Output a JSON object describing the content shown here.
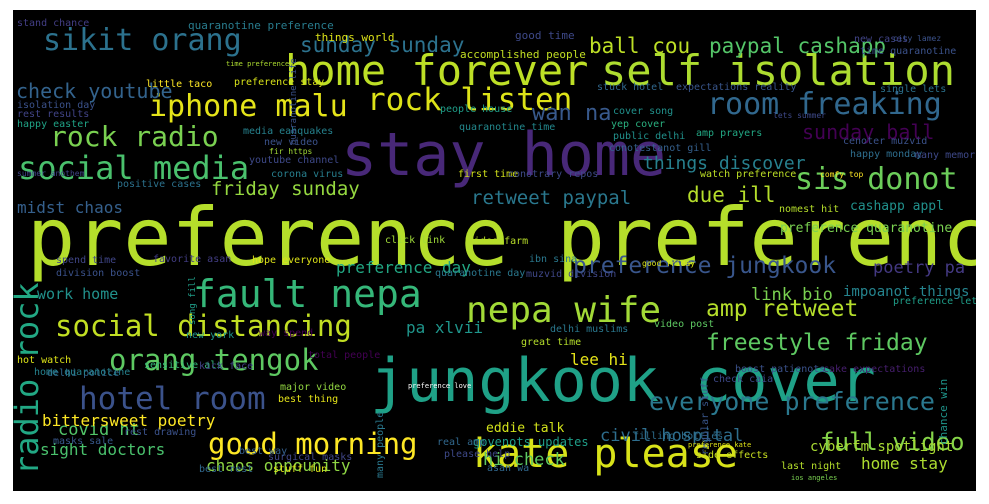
{
  "words": [
    {
      "text": "preference preference",
      "color": "#b5de2b"
    },
    {
      "text": "jungkook cover",
      "color": "#1fa187"
    },
    {
      "text": "stay home",
      "color": "#482878"
    },
    {
      "text": "home forever",
      "color": "#bddf26"
    },
    {
      "text": "self isolation",
      "color": "#addc30"
    },
    {
      "text": "kate please",
      "color": "#d8e219"
    },
    {
      "text": "fault nepa",
      "color": "#35b779"
    },
    {
      "text": "nepa wife",
      "color": "#a2da37"
    },
    {
      "text": "social media",
      "color": "#4ac16d"
    },
    {
      "text": "social distancing",
      "color": "#c2df23"
    },
    {
      "text": "rock listen",
      "color": "#dde318"
    },
    {
      "text": "room freaking",
      "color": "#31688e"
    },
    {
      "text": "iphone malu",
      "color": "#e5e419"
    },
    {
      "text": "good morning",
      "color": "#fde725"
    },
    {
      "text": "hotel room",
      "color": "#3b528b"
    },
    {
      "text": "orang tengok",
      "color": "#5ec962"
    },
    {
      "text": "sis donot",
      "color": "#6ccd5a"
    },
    {
      "text": "rock radio",
      "color": "#7ad151"
    },
    {
      "text": "sikit orang",
      "color": "#2c728e"
    },
    {
      "text": "radio rock",
      "color": "#22a884"
    },
    {
      "text": "everyone preference",
      "color": "#2a788e"
    },
    {
      "text": "full video",
      "color": "#86d549"
    },
    {
      "text": "freestyle friday",
      "color": "#5ec962"
    },
    {
      "text": "amp retweet",
      "color": "#b5de2b"
    },
    {
      "text": "preference jungkook",
      "color": "#39568c"
    },
    {
      "text": "sunday sunday",
      "color": "#2c728e"
    },
    {
      "text": "ball cou",
      "color": "#bddf26"
    },
    {
      "text": "paypal cashapp",
      "color": "#54c568"
    },
    {
      "text": "check youtube",
      "color": "#33638d"
    },
    {
      "text": "friday sunday",
      "color": "#95d840"
    },
    {
      "text": "retweet paypal",
      "color": "#2a788e"
    },
    {
      "text": "due ill",
      "color": "#b5de2b"
    },
    {
      "text": "wan na",
      "color": "#38598c"
    },
    {
      "text": "sunday ball",
      "color": "#440154"
    },
    {
      "text": "things discover",
      "color": "#27808e"
    },
    {
      "text": "midst chaos",
      "color": "#35608d"
    },
    {
      "text": "preference day",
      "color": "#22a884"
    },
    {
      "text": "link bio",
      "color": "#7ad151"
    },
    {
      "text": "poetry pa",
      "color": "#443983"
    },
    {
      "text": "covid ht",
      "color": "#52c569"
    },
    {
      "text": "bittersweet poetry",
      "color": "#fde725"
    },
    {
      "text": "sight doctors",
      "color": "#4ac16d"
    },
    {
      "text": "chaos oppounity",
      "color": "#8fd744"
    },
    {
      "text": "hi check",
      "color": "#5ec962"
    },
    {
      "text": "civil hospital",
      "color": "#2e6e8e"
    },
    {
      "text": "home stay",
      "color": "#addc30"
    },
    {
      "text": "lee hi",
      "color": "#e5e419"
    },
    {
      "text": "work home",
      "color": "#21918c"
    },
    {
      "text": "pa xlvii",
      "color": "#1f958b"
    },
    {
      "text": "cyberfm spotlight",
      "color": "#a8db34"
    },
    {
      "text": "eddie talk",
      "color": "#d2e21b"
    },
    {
      "text": "govenots updates",
      "color": "#1f9e89"
    },
    {
      "text": "preference quaranotine",
      "color": "#7ad151"
    },
    {
      "text": "cashapp appl",
      "color": "#21918c"
    },
    {
      "text": "impoanot things",
      "color": "#25848e"
    },
    {
      "text": "quaranotine preference",
      "color": "#287c8e"
    },
    {
      "text": "good time",
      "color": "#3e4989"
    },
    {
      "text": "things world",
      "color": "#dde318"
    },
    {
      "text": "accomplished people",
      "color": "#c2df23"
    },
    {
      "text": "stand chance",
      "color": "#433e85"
    },
    {
      "text": "isolation day",
      "color": "#3b528b"
    },
    {
      "text": "rest results",
      "color": "#414487"
    },
    {
      "text": "happy easter",
      "color": "#20a386"
    },
    {
      "text": "little taco",
      "color": "#fde725"
    },
    {
      "text": "preference stay",
      "color": "#d8e219"
    },
    {
      "text": "people house",
      "color": "#1f9e89"
    },
    {
      "text": "yep cover",
      "color": "#2ab07f"
    },
    {
      "text": "cover song",
      "color": "#21918c"
    },
    {
      "text": "amp prayers",
      "color": "#22a884"
    },
    {
      "text": "quaranotine time",
      "color": "#23898e"
    },
    {
      "text": "stuck hotel",
      "color": "#31688e"
    },
    {
      "text": "expectations reality",
      "color": "#39568c"
    },
    {
      "text": "media eahquakes",
      "color": "#26828e"
    },
    {
      "text": "new video",
      "color": "#3b528b"
    },
    {
      "text": "corona virus",
      "color": "#277f8e"
    },
    {
      "text": "positive cases",
      "color": "#2c728e"
    },
    {
      "text": "youtube channel",
      "color": "#3e4989"
    },
    {
      "text": "first time",
      "color": "#d2e21b"
    },
    {
      "text": "conotrary repos",
      "color": "#3e4a89"
    },
    {
      "text": "click link",
      "color": "#a0da39"
    },
    {
      "text": "video farm",
      "color": "#b8de29"
    },
    {
      "text": "favorite asan",
      "color": "#433e85"
    },
    {
      "text": "hope everyone",
      "color": "#dde318"
    },
    {
      "text": "delhi police",
      "color": "#31688e"
    },
    {
      "text": "division boost",
      "color": "#3b528b"
    },
    {
      "text": "spend time",
      "color": "#404688"
    },
    {
      "text": "quaranotine day",
      "color": "#2a788e"
    },
    {
      "text": "muzvid division",
      "color": "#3f4788"
    },
    {
      "text": "delhi muslims",
      "color": "#2a788e"
    },
    {
      "text": "video post",
      "color": "#5ec962"
    },
    {
      "text": "total people",
      "color": "#440154"
    },
    {
      "text": "sensitive als",
      "color": "#35b779"
    },
    {
      "text": "new york",
      "color": "#1f948c"
    },
    {
      "text": "way spend",
      "color": "#440154"
    },
    {
      "text": "hot watch",
      "color": "#dde318"
    },
    {
      "text": "home quaranotine",
      "color": "#26828e"
    },
    {
      "text": "kick face",
      "color": "#414487"
    },
    {
      "text": "major video",
      "color": "#93d741"
    },
    {
      "text": "best thing",
      "color": "#e5e419"
    },
    {
      "text": "real amp",
      "color": "#31688e"
    },
    {
      "text": "great time",
      "color": "#b5de2b"
    },
    {
      "text": "filling bottles",
      "color": "#2e6e8e"
    },
    {
      "text": "please help",
      "color": "#3e4989"
    },
    {
      "text": "asan wa",
      "color": "#31688e"
    },
    {
      "text": "rest drawing",
      "color": "#3b528b"
    },
    {
      "text": "masks sale",
      "color": "#38598c"
    },
    {
      "text": "surgical masks",
      "color": "#404688"
    },
    {
      "text": "best rest",
      "color": "#31688e"
    },
    {
      "text": "stuff fun",
      "color": "#dde318"
    },
    {
      "text": "best way",
      "color": "#35608d"
    },
    {
      "text": "boost patienots",
      "color": "#3b528b"
    },
    {
      "text": "cake expectations",
      "color": "#481f70"
    },
    {
      "text": "check caia",
      "color": "#3e4989"
    },
    {
      "text": "side effects",
      "color": "#c8e020"
    },
    {
      "text": "last night",
      "color": "#b5de2b"
    },
    {
      "text": "chance win",
      "color": "#1f958b"
    },
    {
      "text": "watch preference",
      "color": "#bddf26"
    },
    {
      "text": "conotestanot gill",
      "color": "#35608d"
    },
    {
      "text": "public delhi",
      "color": "#21918c"
    },
    {
      "text": "cenoter muzvid",
      "color": "#3b528b"
    },
    {
      "text": "happy monday",
      "color": "#2e6e8e"
    },
    {
      "text": "many memories",
      "color": "#3e4989"
    },
    {
      "text": "new cases",
      "color": "#414487"
    },
    {
      "text": "time quaranotine",
      "color": "#3b528b"
    },
    {
      "text": "single lets",
      "color": "#2c728e"
    },
    {
      "text": "lets summer",
      "color": "#3e4989"
    },
    {
      "text": "city lamez",
      "color": "#3b528b"
    },
    {
      "text": "ibn sina",
      "color": "#2a788e"
    },
    {
      "text": "nomest hit",
      "color": "#b5de2b"
    },
    {
      "text": "good friday",
      "color": "#d8e219"
    },
    {
      "text": "regular stuff",
      "color": "#39568c"
    },
    {
      "text": "comfy top",
      "color": "#fde725"
    },
    {
      "text": "fir https",
      "color": "#a2da37"
    },
    {
      "text": "summer anothem",
      "color": "#404688"
    },
    {
      "text": "time preference",
      "color": "#addc30"
    },
    {
      "text": "song fill",
      "color": "#1f9e89"
    },
    {
      "text": "many people",
      "color": "#2a788e"
    },
    {
      "text": "preference kate",
      "color": "#dde318"
    },
    {
      "text": "preference love",
      "color": "#ffffff"
    },
    {
      "text": "preference let",
      "color": "#1f9e89"
    },
    {
      "text": "quaranotine life",
      "color": "#3b528b"
    },
    {
      "text": "ios angeles",
      "color": "#7ad151"
    }
  ]
}
